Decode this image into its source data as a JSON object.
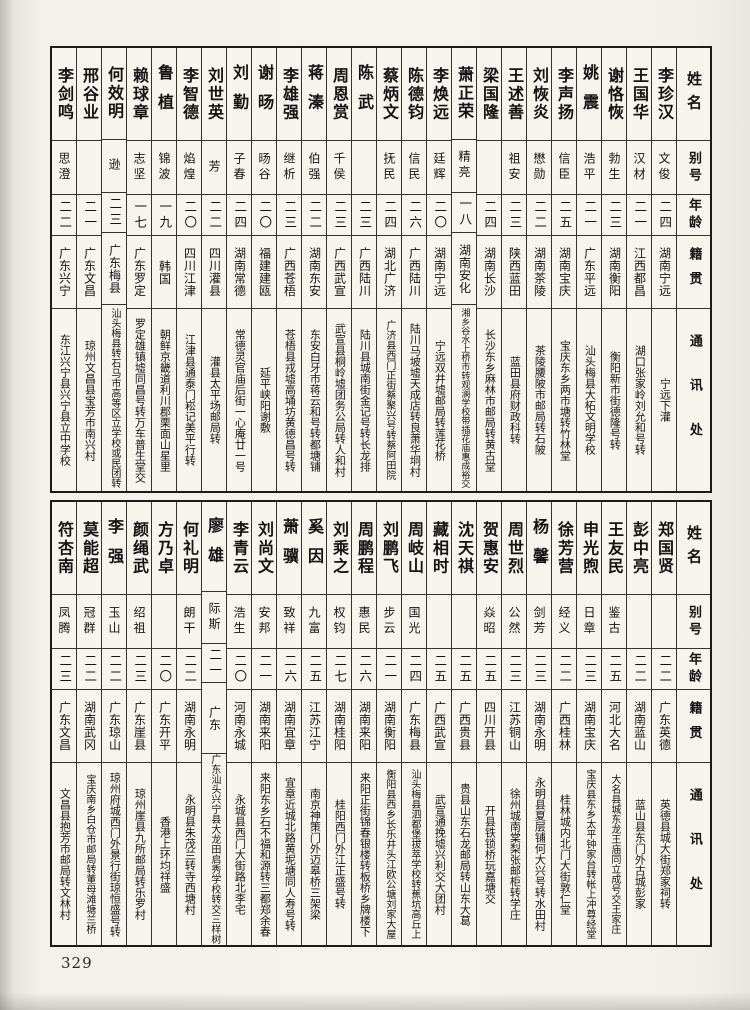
{
  "page_number": "329",
  "headers": {
    "name": "姓名",
    "alias": "别号",
    "age": "年龄",
    "native": "籍贯",
    "address": "通讯处"
  },
  "top": {
    "entries": [
      {
        "name": "李珍汉",
        "alias": "文俊",
        "age": "二四",
        "native": "湖南宁远",
        "address": "宁远下灌"
      },
      {
        "name": "王国华",
        "alias": "汉材",
        "age": "二一",
        "native": "江西都昌",
        "address": "湖口张家岭刘允和号转"
      },
      {
        "name": "谢恪恢",
        "alias": "勃生",
        "age": "二三",
        "native": "湖南衡阳",
        "address": "衡阳新市街德隆号转"
      },
      {
        "name": "姚震",
        "alias": "浩平",
        "age": "二一",
        "native": "广东平远",
        "address": "汕头梅县大柘文明学校"
      },
      {
        "name": "李声扬",
        "alias": "信臣",
        "age": "二五",
        "native": "湖南宝庆",
        "address": "宝庆东乡两市塘转竹林堂"
      },
      {
        "name": "刘恢炎",
        "alias": "懋勋",
        "age": "二二",
        "native": "湖南茶陵",
        "address": "茶陵腰陂市邮局转石陂"
      },
      {
        "name": "王述善",
        "alias": "祖安",
        "age": "二三",
        "native": "陕西蓝田",
        "address": "蓝田县府财政科转"
      },
      {
        "name": "梁国隆",
        "alias": "",
        "age": "二四",
        "native": "湖南长沙",
        "address": "长沙东乡麻林市邮局转黄古堂"
      },
      {
        "name": "萧正荣",
        "alias": "精亮",
        "age": "一八",
        "native": "湖南安化",
        "address": "湘乡谷水上桥市转观澜学校带插花庙惠成裕交"
      },
      {
        "name": "李焕远",
        "alias": "廷辉",
        "age": "二〇",
        "native": "湖南宁远",
        "address": "宁远双井墟邮局转莲花桥"
      },
      {
        "name": "陈德钧",
        "alias": "信民",
        "age": "二六",
        "native": "广西陆川",
        "address": "陆川马坡墟天成店转良萧华垌村"
      },
      {
        "name": "蔡炳文",
        "alias": "抚民",
        "age": "二四",
        "native": "湖北广济",
        "address": "广济县西门正街蔡聚兴号转蔡阿田院"
      },
      {
        "name": "陈武",
        "alias": "",
        "age": "二三",
        "native": "广西陆川",
        "address": "陆川县城南街金记号转长龙排"
      },
      {
        "name": "周恩赏",
        "alias": "千侯",
        "age": "二三",
        "native": "广西武宣",
        "address": "武宣县桐岭墟团务公局转人和村"
      },
      {
        "name": "蒋溱",
        "alias": "伯强",
        "age": "二二",
        "native": "湖南东安",
        "address": "东安白牙市蒋云和号转都塘铺"
      },
      {
        "name": "李雄强",
        "alias": "继析",
        "age": "二三",
        "native": "广西苍梧",
        "address": "苍梧县戎墟高埇坊黄德昌号转"
      },
      {
        "name": "谢旸",
        "alias": "旸谷",
        "age": "二〇",
        "native": "福建建瓯",
        "address": "延平峡阳谢敷"
      },
      {
        "name": "刘勤",
        "alias": "子春",
        "age": "二四",
        "native": "湖南常德",
        "address": "常德灵官庙后街一心庵廿一号"
      },
      {
        "name": "刘世英",
        "alias": "芳",
        "age": "二二",
        "native": "四川灌县",
        "address": "灌县太平场邮局转"
      },
      {
        "name": "李智德",
        "alias": "焰煌",
        "age": "二〇",
        "native": "四川江津",
        "address": "江津县通泰门崧记美平行转"
      },
      {
        "name": "鲁植",
        "alias": "锦波",
        "age": "一九",
        "native": "韩国",
        "address": "朝鲜京畿道利川郡栗面山星里"
      },
      {
        "name": "赖球章",
        "alias": "志坚",
        "age": "一七",
        "native": "广东罗定",
        "address": "罗定雄镇墟同昌号转万车普生堂交"
      },
      {
        "name": "何效明",
        "alias": "逊",
        "age": "二三",
        "native": "广东梅县",
        "address": "汕头梅县转石马市高等区立学校或民团转"
      },
      {
        "name": "邢谷业",
        "alias": "",
        "age": "二一",
        "native": "广东文昌",
        "address": "琼州文昌县宝芳市南兴村"
      },
      {
        "name": "李剑鸣",
        "alias": "思澄",
        "age": "二二",
        "native": "广东兴宁",
        "address": "东江兴宁县兴宁县立中学校"
      }
    ]
  },
  "bottom": {
    "entries": [
      {
        "name": "郑国贤",
        "alias": "",
        "age": "二二",
        "native": "广东英德",
        "address": "英德县城大街郑家祠转"
      },
      {
        "name": "彭中亮",
        "alias": "",
        "age": "二二",
        "native": "湖南蓝山",
        "address": "蓝山县东门外古城彭家"
      },
      {
        "name": "王友民",
        "alias": "鉴古",
        "age": "二五",
        "native": "河北大名",
        "address": "大名县城东龙王庙同立成号交王家庄"
      },
      {
        "name": "申光煦",
        "alias": "日章",
        "age": "二三",
        "native": "湖南宝庆",
        "address": "宝庆县东乡太平钟家台转帐上冲尊经堂"
      },
      {
        "name": "徐芳营",
        "alias": "经义",
        "age": "二二",
        "native": "广西桂林",
        "address": "桂林城内北门大街敦仁堂"
      },
      {
        "name": "杨馨",
        "alias": "剑芳",
        "age": "二三",
        "native": "湖南永明",
        "address": "永明县夏层铺何大兴号转水田村"
      },
      {
        "name": "周世烈",
        "alias": "公然",
        "age": "二三",
        "native": "江苏铜山",
        "address": "徐州城南棠梨张邮柜转学庄"
      },
      {
        "name": "贺惠安",
        "alias": "焱昭",
        "age": "二五",
        "native": "四川开县",
        "address": "开县铁锁桥玩嘉塘交"
      },
      {
        "name": "沈天祺",
        "alias": "",
        "age": "二五",
        "native": "广西贵县",
        "address": "贵县山东石龙邮局转山东大葛"
      },
      {
        "name": "藏相时",
        "alias": "",
        "age": "二五",
        "native": "广西武宣",
        "address": "武宣通挽墟兴利交大团村"
      },
      {
        "name": "周岐山",
        "alias": "国光",
        "age": "二四",
        "native": "广东梅县",
        "address": "汕头梅县泗都堡拔萃学校转蕉坑高丘上"
      },
      {
        "name": "刘鹏飞",
        "alias": "步云",
        "age": "二一",
        "native": "湖南衡阳",
        "address": "衡阳县西乡长乐井头江欧公塘刘家大屋"
      },
      {
        "name": "周鹏程",
        "alias": "惠民",
        "age": "二六",
        "native": "湖南来阳",
        "address": "来阳正街锦春银楼转板桥乡牌楼下"
      },
      {
        "name": "刘乘之",
        "alias": "权钧",
        "age": "二七",
        "native": "湖南桂阳",
        "address": "桂阳西门外江正盛号转"
      },
      {
        "name": "奚因",
        "alias": "九富",
        "age": "二五",
        "native": "江苏江宁",
        "address": "南京神策门外迈皋桥三架梁"
      },
      {
        "name": "萧骥",
        "alias": "致祥",
        "age": "二六",
        "native": "湖南宜章",
        "address": "宜章近城北路黄坭塘同人寿号转"
      },
      {
        "name": "刘尚文",
        "alias": "安邦",
        "age": "二一",
        "native": "湖南来阳",
        "address": "来阳东乡石不福和源转三都郑余春"
      },
      {
        "name": "李青云",
        "alias": "浩生",
        "age": "二〇",
        "native": "河南永城",
        "address": "永城县西门大街路北李宅"
      },
      {
        "name": "廖雄",
        "alias": "际斯",
        "age": "二一",
        "native": "广东",
        "address": "广东汕头兴宁县大龙田启秀学校转交三样树"
      },
      {
        "name": "何礼明",
        "alias": "朗干",
        "age": "二二",
        "native": "湖南永明",
        "address": "永明县朱茂兰转寺西塘村"
      },
      {
        "name": "方乃卓",
        "alias": "",
        "age": "二〇",
        "native": "广东开平",
        "address": "香港上环均祥盛"
      },
      {
        "name": "颜绳武",
        "alias": "绍祖",
        "age": "二三",
        "native": "广东崖县",
        "address": "琼州崖县九所邮局转乐罗村"
      },
      {
        "name": "李强",
        "alias": "玉山",
        "age": "二二",
        "native": "广东琼山",
        "address": "琼州府城西门外景行街琼恒盛号转"
      },
      {
        "name": "莫能超",
        "alias": "冠群",
        "age": "二二",
        "native": "湖南武冈",
        "address": "宝庆南乡白仓市邮局转董母滩塘兰桥"
      },
      {
        "name": "符杏南",
        "alias": "凤腾",
        "age": "二三",
        "native": "广东文昌",
        "address": "文昌县抱芳市邮局转文林村"
      }
    ]
  }
}
